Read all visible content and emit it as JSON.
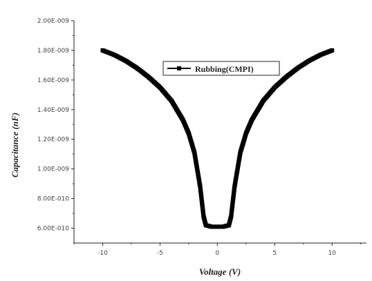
{
  "chart_data": {
    "type": "scatter",
    "xlabel": "Voltage (V)",
    "ylabel": "Capacitance (nF)",
    "xlim": [
      -12.5,
      13
    ],
    "ylim": [
      5e-10,
      2e-09
    ],
    "x_ticks": [
      -10,
      -5,
      0,
      5,
      10
    ],
    "x_tick_labels": [
      "-10",
      "-5",
      "0",
      "5",
      "10"
    ],
    "y_ticks": [
      6e-10,
      8e-10,
      1e-09,
      1.2e-09,
      1.4e-09,
      1.6e-09,
      1.8e-09,
      2e-09
    ],
    "y_tick_labels": [
      "6.00E-010",
      "8.00E-010",
      "1.00E-009",
      "1.20E-009",
      "1.40E-009",
      "1.60E-009",
      "1.80E-009",
      "2.00E-009"
    ],
    "grid": false,
    "legend_position": "top-center",
    "series": [
      {
        "name": "Rubbing(CMPI)",
        "color": "#000000",
        "marker": "square",
        "x": [
          -10,
          -9,
          -8,
          -7,
          -6,
          -5,
          -4,
          -3,
          -2.5,
          -2,
          -1.5,
          -1.2,
          -1,
          -0.5,
          0,
          0.5,
          1,
          1.2,
          1.5,
          2,
          2.5,
          3,
          4,
          5,
          6,
          7,
          8,
          9,
          10
        ],
        "y": [
          1.8e-09,
          1.77e-09,
          1.73e-09,
          1.68e-09,
          1.62e-09,
          1.55e-09,
          1.46e-09,
          1.33e-09,
          1.24e-09,
          1.11e-09,
          8.8e-10,
          6.8e-10,
          6.2e-10,
          6.1e-10,
          6.1e-10,
          6.1e-10,
          6.2e-10,
          6.8e-10,
          8.8e-10,
          1.11e-09,
          1.24e-09,
          1.33e-09,
          1.46e-09,
          1.55e-09,
          1.62e-09,
          1.68e-09,
          1.73e-09,
          1.77e-09,
          1.8e-09
        ]
      }
    ]
  }
}
